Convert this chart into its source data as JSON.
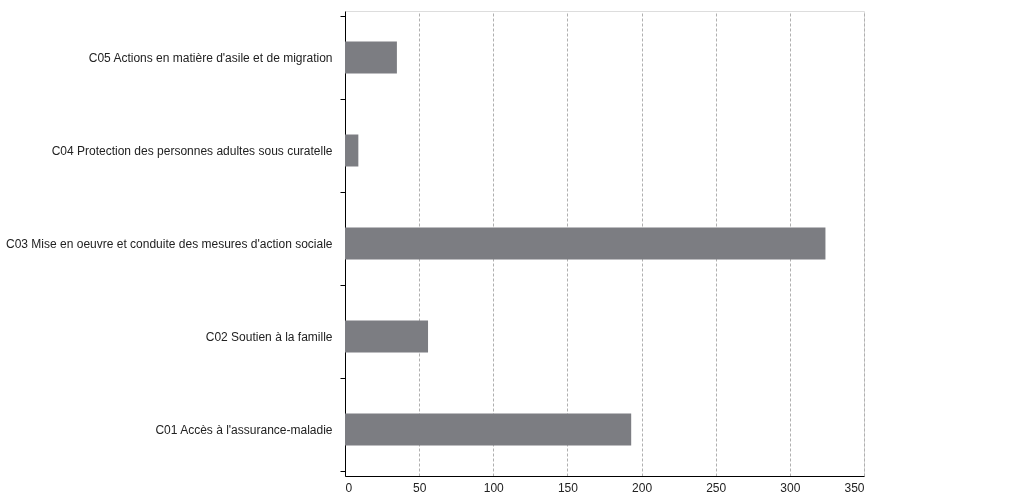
{
  "chart_data": {
    "type": "bar",
    "orientation": "horizontal",
    "categories": [
      "C05 Actions en matière d'asile et de migration",
      "C04 Protection des personnes adultes sous curatelle",
      "C03 Mise en oeuvre et conduite des mesures d'action sociale",
      "C02 Soutien à la famille",
      "C01 Accès à l'assurance-maladie"
    ],
    "values": [
      35,
      9,
      324,
      56,
      193
    ],
    "color": "#7c7d82",
    "xlim": [
      0,
      350
    ],
    "xticks": [
      0,
      50,
      100,
      150,
      200,
      250,
      300,
      350
    ],
    "grid": "x"
  }
}
